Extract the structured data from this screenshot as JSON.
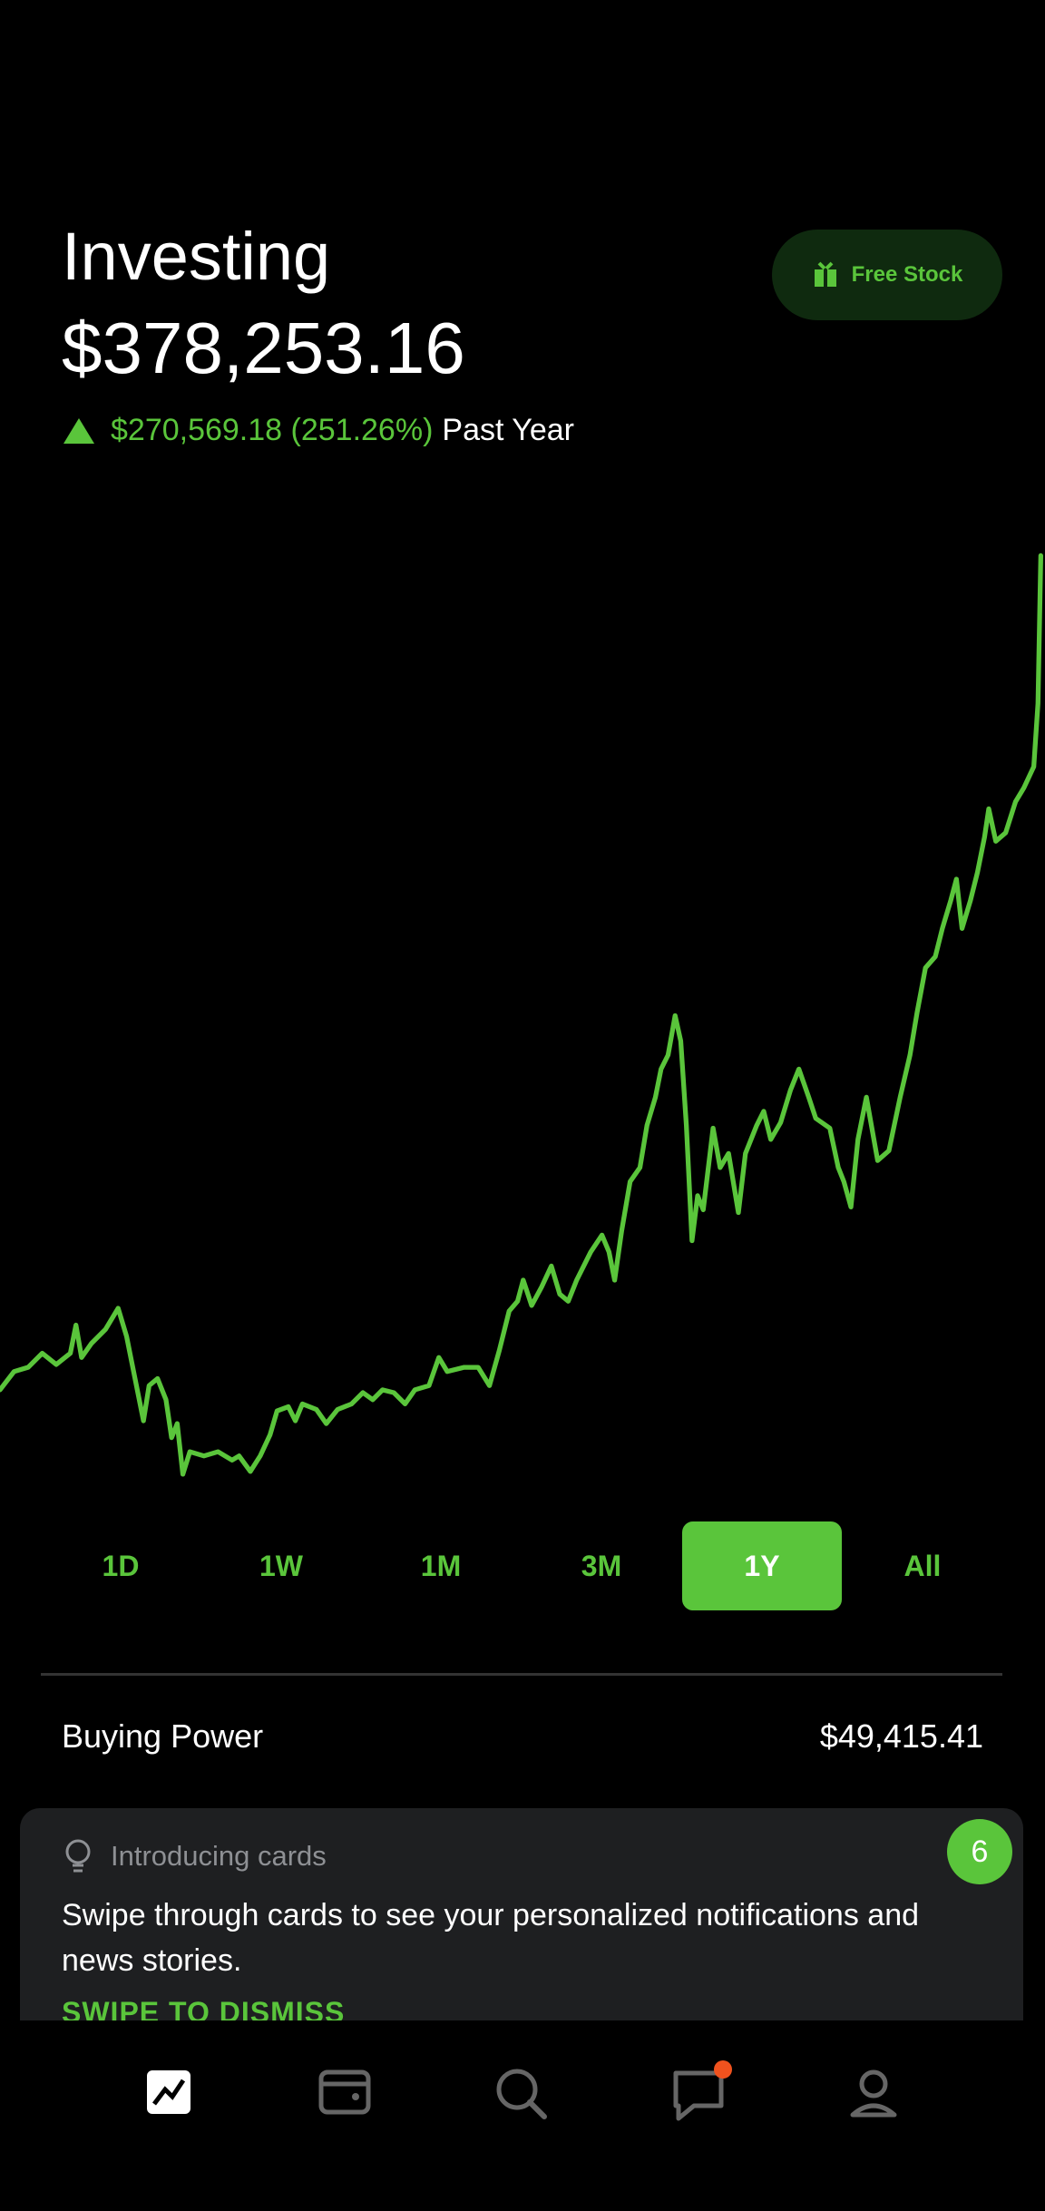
{
  "header": {
    "title": "Investing",
    "balance": "$378,253.16",
    "change": "$270,569.18 (251.26%)",
    "period": "Past Year",
    "free_stock": "Free Stock"
  },
  "ranges": [
    "1D",
    "1W",
    "1M",
    "3M",
    "1Y",
    "All"
  ],
  "selected_range": 4,
  "buying_power": {
    "label": "Buying Power",
    "value": "$49,415.41"
  },
  "card": {
    "eyebrow": "Introducing cards",
    "body": "Swipe through cards to see your personalized notifications and news stories.",
    "action": "SWIPE TO DISMISS",
    "badge": "6"
  }
}
